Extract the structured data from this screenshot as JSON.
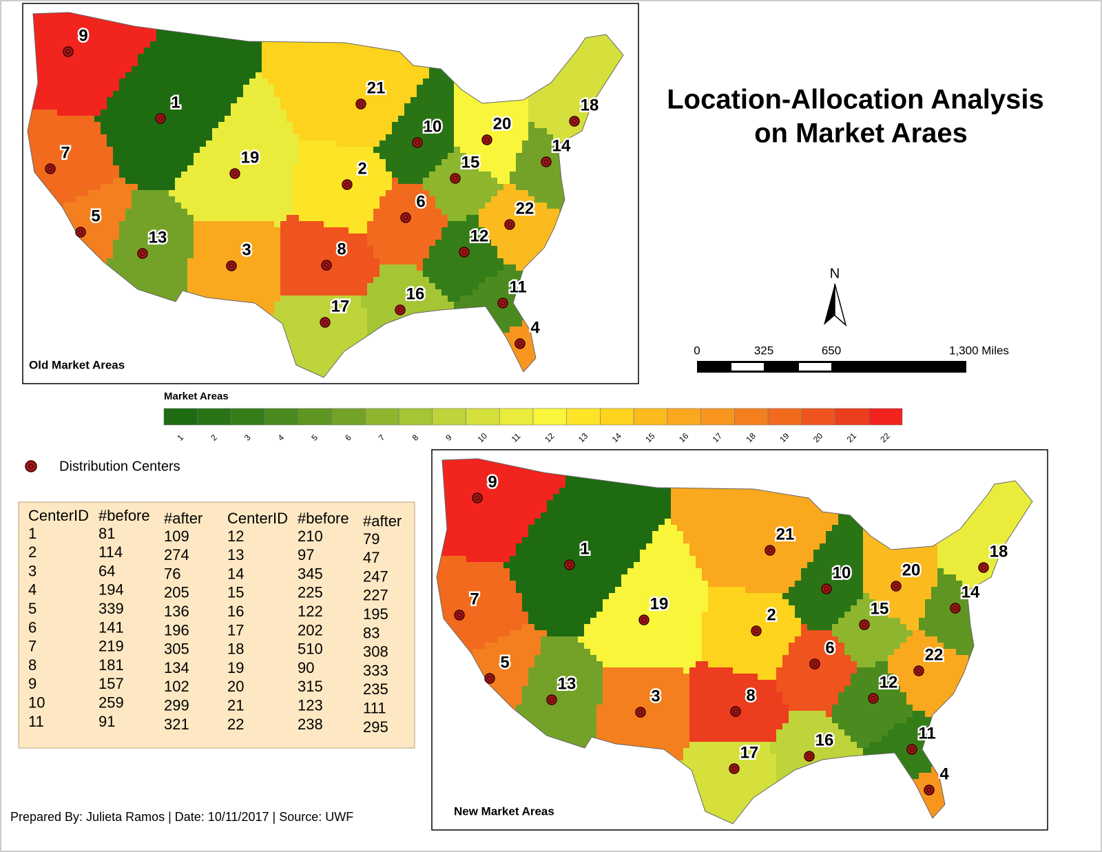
{
  "title": [
    "Location-Allocation Analysis",
    "on Market Araes"
  ],
  "old_map": {
    "label": "Old Market Areas",
    "area_class": [
      1,
      13,
      16,
      17,
      18,
      19,
      19,
      20,
      22,
      2,
      4,
      3,
      6,
      6,
      7,
      8,
      9,
      10,
      11,
      12,
      14,
      15
    ]
  },
  "new_map": {
    "label": "New Market Areas",
    "area_class": [
      1,
      14,
      18,
      17,
      18,
      20,
      19,
      21,
      22,
      2,
      3,
      4,
      6,
      5,
      7,
      9,
      10,
      11,
      12,
      15,
      16,
      16
    ]
  },
  "legend": {
    "title": "Market Areas",
    "classes": [
      1,
      2,
      3,
      4,
      5,
      6,
      7,
      8,
      9,
      10,
      11,
      12,
      13,
      14,
      15,
      16,
      17,
      18,
      19,
      20,
      21,
      22
    ],
    "colors": [
      "#1e6b12",
      "#2a7416",
      "#357d18",
      "#4b8a1e",
      "#5f9622",
      "#74a228",
      "#8db52e",
      "#a6c535",
      "#bed43a",
      "#d5e03c",
      "#eaec3c",
      "#f8f53a",
      "#fde426",
      "#fdd31d",
      "#fbbb1e",
      "#faa81e",
      "#f8951e",
      "#f47f1e",
      "#f26a1e",
      "#ef531e",
      "#ec3d1e",
      "#f1241e"
    ]
  },
  "symbol_legend": "Distribution Centers",
  "north": "N",
  "scale_bar": [
    "0",
    "325",
    "650",
    "1,300 Miles"
  ],
  "table": {
    "headers": [
      "CenterID",
      "#before",
      "#after"
    ],
    "rows": [
      [
        1,
        81,
        109
      ],
      [
        2,
        114,
        274
      ],
      [
        3,
        64,
        76
      ],
      [
        4,
        194,
        205
      ],
      [
        5,
        339,
        136
      ],
      [
        6,
        141,
        196
      ],
      [
        7,
        219,
        305
      ],
      [
        8,
        181,
        134
      ],
      [
        9,
        157,
        102
      ],
      [
        10,
        259,
        299
      ],
      [
        11,
        91,
        321
      ],
      [
        12,
        210,
        79
      ],
      [
        13,
        97,
        47
      ],
      [
        14,
        345,
        247
      ],
      [
        15,
        225,
        227
      ],
      [
        16,
        122,
        195
      ],
      [
        17,
        202,
        83
      ],
      [
        18,
        510,
        308
      ],
      [
        19,
        90,
        333
      ],
      [
        20,
        315,
        235
      ],
      [
        21,
        123,
        111
      ],
      [
        22,
        238,
        295
      ]
    ]
  },
  "footer": "Prepared By: Julieta Ramos | Date: 10/11/2017 | Source: UWF"
}
